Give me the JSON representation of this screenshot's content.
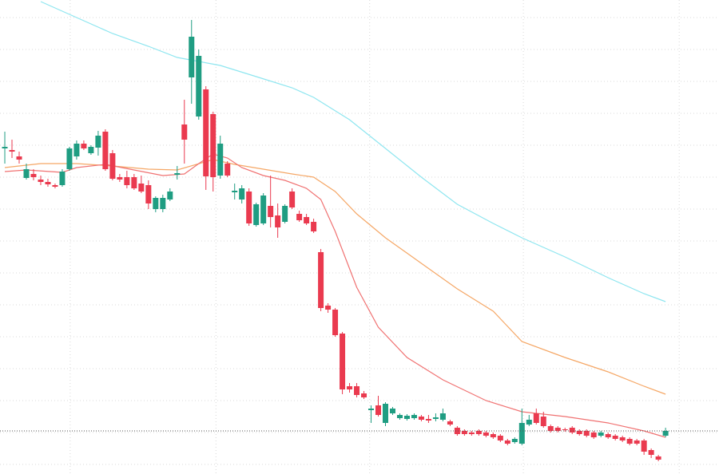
{
  "chart_data": {
    "type": "candlestick",
    "categories": [
      null,
      null,
      null,
      null,
      null,
      null,
      null,
      null,
      null,
      null,
      null,
      null,
      null,
      null,
      null,
      null,
      null,
      null,
      null,
      null,
      null,
      null,
      null,
      null,
      null,
      null,
      null,
      null,
      null,
      null,
      null,
      null,
      null,
      null,
      null,
      null,
      null,
      null,
      null,
      null,
      null,
      null,
      null,
      null,
      null,
      null,
      null,
      null,
      null,
      null,
      null,
      null,
      null,
      null,
      null,
      null,
      null,
      null,
      null,
      null,
      null,
      null,
      null,
      null,
      null,
      null,
      null,
      null,
      null,
      null,
      null,
      null,
      null,
      null,
      null,
      null,
      null,
      null,
      null,
      null,
      null,
      null,
      null,
      null,
      null,
      null,
      null,
      null,
      null,
      null,
      null,
      null,
      null
    ],
    "open": [
      414,
      412,
      404,
      377,
      382,
      375,
      372,
      368,
      368,
      388,
      404,
      420,
      408,
      415,
      435,
      408,
      378,
      378,
      378,
      370,
      368,
      338,
      338,
      350,
      381,
      444,
      503,
      454,
      488,
      457,
      380,
      395,
      359,
      350,
      360,
      318,
      320,
      342,
      330,
      322,
      360,
      332,
      328,
      322,
      284,
      217,
      212,
      182,
      116,
      116,
      107,
      86,
      92,
      70,
      82,
      76,
      75,
      76,
      78,
      75,
      75,
      74,
      72,
      64,
      60,
      58,
      60,
      58,
      56,
      54,
      48,
      46,
      44,
      68,
      82,
      78,
      66,
      64,
      62,
      64,
      60,
      60,
      58,
      54,
      56,
      54,
      52,
      50,
      48,
      48,
      36,
      28,
      54
    ],
    "high": [
      435,
      425,
      410,
      395,
      388,
      380,
      376,
      370,
      388,
      416,
      424,
      424,
      418,
      436,
      438,
      412,
      382,
      386,
      382,
      380,
      374,
      354,
      356,
      364,
      392,
      475,
      575,
      538,
      492,
      460,
      430,
      398,
      370,
      368,
      364,
      346,
      358,
      380,
      345,
      344,
      364,
      336,
      332,
      326,
      288,
      220,
      214,
      184,
      120,
      120,
      110,
      92,
      104,
      96,
      90,
      82,
      81,
      82,
      80,
      80,
      82,
      88,
      74,
      66,
      62,
      60,
      62,
      60,
      58,
      56,
      50,
      52,
      88,
      80,
      88,
      84,
      68,
      66,
      64,
      66,
      62,
      62,
      60,
      60,
      58,
      56,
      54,
      52,
      50,
      50,
      38,
      30,
      64
    ],
    "low": [
      395,
      402,
      395,
      375,
      374,
      368,
      366,
      364,
      366,
      386,
      400,
      412,
      406,
      405,
      386,
      374,
      372,
      364,
      362,
      358,
      338,
      334,
      334,
      348,
      375,
      395,
      470,
      450,
      362,
      360,
      376,
      378,
      350,
      345,
      317,
      316,
      318,
      315,
      302,
      320,
      338,
      322,
      318,
      308,
      210,
      208,
      178,
      106,
      108,
      102,
      100,
      70,
      78,
      66,
      80,
      74,
      73,
      74,
      72,
      70,
      72,
      72,
      66,
      54,
      54,
      54,
      54,
      52,
      50,
      46,
      42,
      44,
      42,
      66,
      68,
      64,
      58,
      58,
      59,
      56,
      54,
      52,
      50,
      52,
      50,
      48,
      46,
      42,
      42,
      30,
      26,
      22,
      52
    ],
    "close": [
      416,
      410,
      400,
      388,
      378,
      372,
      369,
      366,
      385,
      414,
      420,
      414,
      416,
      430,
      388,
      376,
      375,
      368,
      364,
      360,
      345,
      352,
      352,
      360,
      383,
      425,
      554,
      530,
      379,
      378,
      420,
      380,
      361,
      364,
      320,
      344,
      355,
      328,
      315,
      342,
      340,
      324,
      320,
      310,
      214,
      212,
      180,
      112,
      112,
      105,
      102,
      88,
      80,
      94,
      88,
      80,
      79,
      80,
      74,
      73,
      77,
      82,
      68,
      56,
      56,
      56,
      56,
      54,
      52,
      48,
      44,
      50,
      70,
      74,
      70,
      66,
      60,
      60,
      61,
      58,
      56,
      54,
      52,
      58,
      52,
      50,
      48,
      44,
      44,
      34,
      30,
      24,
      60
    ],
    "up_color": "#1f9d82",
    "down_color": "#ea3a4f",
    "series": [
      {
        "color": "#8ee6f0",
        "x": [
          5,
          10,
          15,
          20,
          24,
          30,
          35,
          40,
          43,
          48,
          53,
          58,
          63,
          68,
          72,
          78,
          84,
          89,
          92
        ],
        "values": [
          598,
          578,
          558,
          542,
          528,
          518,
          504,
          490,
          478,
          450,
          414,
          378,
          344,
          320,
          302,
          278,
          252,
          232,
          222
        ]
      },
      {
        "color": "#f5a766",
        "x": [
          0,
          5,
          10,
          15,
          20,
          24,
          29,
          32,
          36,
          40,
          43,
          46,
          49,
          53,
          58,
          63,
          68,
          72,
          78,
          84,
          89,
          92
        ],
        "values": [
          390,
          395,
          395,
          392,
          388,
          387,
          400,
          394,
          388,
          382,
          378,
          360,
          332,
          302,
          270,
          238,
          210,
          172,
          152,
          134,
          116,
          106
        ]
      },
      {
        "color": "#f07272",
        "x": [
          0,
          3,
          8,
          10,
          14,
          18,
          22,
          25,
          27,
          29,
          31,
          33,
          36,
          39,
          42,
          44,
          46,
          49,
          52,
          56,
          61,
          67,
          72,
          78,
          84,
          89,
          92
        ],
        "values": [
          385,
          387,
          384,
          390,
          394,
          387,
          380,
          382,
          395,
          407,
          402,
          390,
          380,
          374,
          364,
          350,
          310,
          240,
          190,
          152,
          124,
          98,
          84,
          78,
          70,
          60,
          52
        ]
      }
    ],
    "xlim": [
      -0.67,
      99.44
    ],
    "xticks": [
      9.1,
      29.4,
      50.8,
      72.2,
      93.9
    ],
    "ylim": [
      6,
      600
    ],
    "yticks": [
      578,
      538,
      498,
      458,
      418,
      378,
      338,
      298,
      258,
      218,
      178,
      138,
      98,
      58,
      18
    ],
    "grid": true
  }
}
